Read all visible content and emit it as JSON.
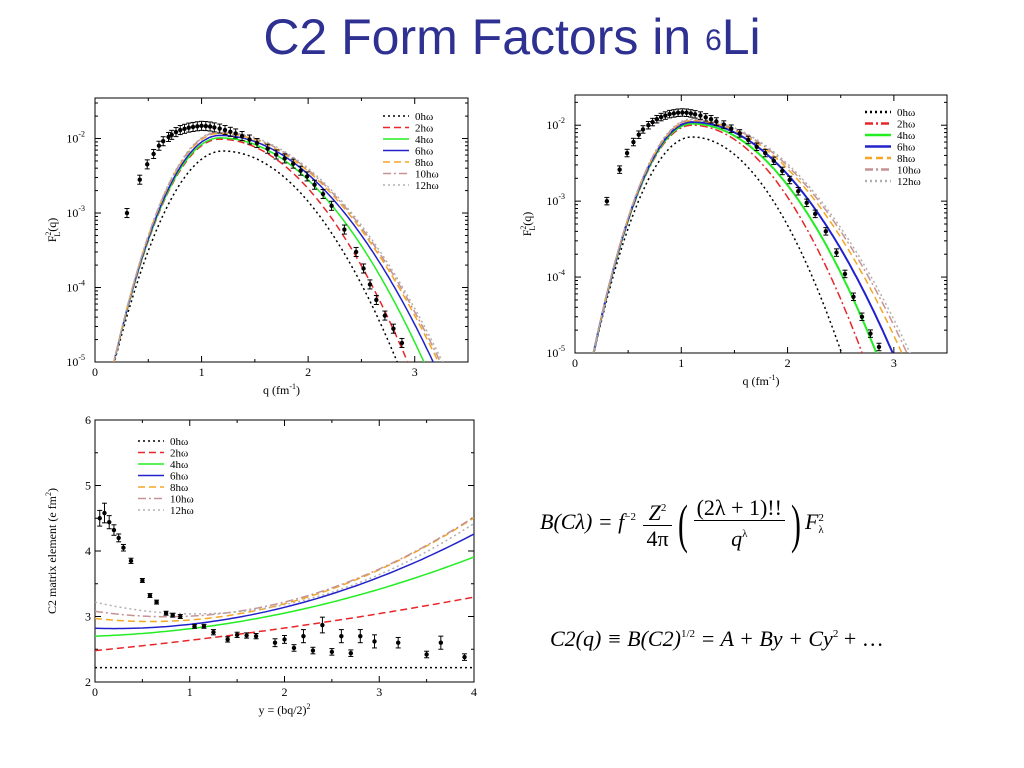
{
  "title": {
    "main": "C2 Form Factors in ",
    "sup": "6",
    "tail": "Li"
  },
  "colors": {
    "title": "#2e3192",
    "0hw": "#000000",
    "2hw": "#e8262a",
    "4hw": "#22ee22",
    "6hw": "#2222cc",
    "8hw": "#f5a623",
    "10hw": "#c49494",
    "12hw": "#b0b0b0"
  },
  "chart_data": [
    {
      "type": "line",
      "id": "plot1",
      "xlabel": "q (fm",
      "xlabel_sup": "-1",
      "xlabel_tail": ")",
      "ylabel": "F",
      "ylabel_sup": "2",
      "ylabel_sub": "L",
      "ylabel_tail": "(q)",
      "xlim": [
        0,
        3.5
      ],
      "ylim": [
        1e-05,
        0.035
      ],
      "yscale": "log",
      "xticks": [
        "0",
        "1",
        "2",
        "3"
      ],
      "yticks": [
        "10",
        "10",
        "10",
        "10"
      ],
      "ytick_exps": [
        "-2",
        "-3",
        "-4",
        "-5"
      ],
      "ytick_values": [
        0.01,
        0.001,
        0.0001,
        1e-05
      ],
      "legend_position": "top-right",
      "series": [
        {
          "name": "0hω",
          "style": "dotted",
          "color_key": "0hw",
          "peak": 0.0068,
          "qmax": 1.2,
          "qlo": 0.13,
          "qhi": 2.92
        },
        {
          "name": "2hω",
          "style": "dashed",
          "color_key": "2hw",
          "peak": 0.0098,
          "qmax": 1.17,
          "qlo": 0.13,
          "qhi": 3.02
        },
        {
          "name": "4hω",
          "style": "solid",
          "color_key": "4hw",
          "peak": 0.0102,
          "qmax": 1.17,
          "qlo": 0.13,
          "qhi": 3.18
        },
        {
          "name": "6hω",
          "style": "solid",
          "color_key": "6hw",
          "peak": 0.011,
          "qmax": 1.17,
          "qlo": 0.13,
          "qhi": 3.27
        },
        {
          "name": "8hω",
          "style": "dashed",
          "color_key": "8hw",
          "peak": 0.0117,
          "qmax": 1.16,
          "qlo": 0.13,
          "qhi": 3.32
        },
        {
          "name": "10hω",
          "style": "dashdot",
          "color_key": "10hw",
          "peak": 0.0121,
          "qmax": 1.16,
          "qlo": 0.13,
          "qhi": 3.34
        },
        {
          "name": "12hω",
          "style": "dotted",
          "color_key": "12hw",
          "peak": 0.0124,
          "qmax": 1.16,
          "qlo": 0.13,
          "qhi": 3.36
        }
      ],
      "data_points": {
        "name": "data",
        "x": [
          0.3,
          0.42,
          0.49,
          0.55,
          0.6,
          0.64,
          0.69,
          0.72,
          0.76,
          0.8,
          0.84,
          0.88,
          0.92,
          0.96,
          1.0,
          1.04,
          1.08,
          1.12,
          1.17,
          1.22,
          1.27,
          1.32,
          1.38,
          1.45,
          1.52,
          1.62,
          1.7,
          1.78,
          1.86,
          1.93,
          1.99,
          2.06,
          2.14,
          2.22,
          2.34,
          2.45,
          2.52,
          2.58,
          2.64,
          2.72,
          2.8,
          2.88
        ],
        "y": [
          0.001,
          0.0028,
          0.0045,
          0.0062,
          0.008,
          0.0092,
          0.0105,
          0.0112,
          0.0122,
          0.013,
          0.0135,
          0.014,
          0.0143,
          0.0146,
          0.0148,
          0.0147,
          0.0145,
          0.0141,
          0.0136,
          0.013,
          0.0123,
          0.0117,
          0.0108,
          0.0097,
          0.0087,
          0.0073,
          0.0061,
          0.0054,
          0.0046,
          0.0037,
          0.0031,
          0.0024,
          0.0018,
          0.00125,
          0.0006,
          0.0003,
          0.00018,
          0.00011,
          6.8e-05,
          4.2e-05,
          2.8e-05,
          1.8e-05
        ],
        "err_rel": 0.15
      }
    },
    {
      "type": "line",
      "id": "plot2",
      "xlabel": "q (fm",
      "xlabel_sup": "-1",
      "xlabel_tail": ")",
      "ylabel": "F",
      "ylabel_sup": "2",
      "ylabel_sub": "L",
      "ylabel_tail": "(q)",
      "xlim": [
        0,
        3.5
      ],
      "ylim": [
        1e-05,
        0.025
      ],
      "yscale": "log",
      "xticks": [
        "0",
        "1",
        "2",
        "3"
      ],
      "yticks": [
        "10",
        "10",
        "10",
        "10"
      ],
      "ytick_exps": [
        "-2",
        "-3",
        "-4",
        "-5"
      ],
      "ytick_values": [
        0.01,
        0.001,
        0.0001,
        1e-05
      ],
      "legend_position": "top-right",
      "series": [
        {
          "name": "0hω",
          "style": "dotted",
          "color_key": "0hw",
          "peak": 0.007,
          "qmax": 1.1,
          "qlo": 0.13,
          "qhi": 2.58
        },
        {
          "name": "2hω",
          "style": "dashdot",
          "color_key": "2hw",
          "peak": 0.01,
          "qmax": 1.1,
          "qlo": 0.13,
          "qhi": 2.78
        },
        {
          "name": "4hω",
          "style": "solid",
          "color_key": "4hw",
          "peak": 0.0105,
          "qmax": 1.1,
          "qlo": 0.13,
          "qhi": 2.92
        },
        {
          "name": "6hω",
          "style": "solid",
          "color_key": "6hw",
          "peak": 0.011,
          "qmax": 1.1,
          "qlo": 0.13,
          "qhi": 3.08
        },
        {
          "name": "8hω",
          "style": "dashed",
          "color_key": "8hw",
          "peak": 0.0115,
          "qmax": 1.1,
          "qlo": 0.13,
          "qhi": 3.17
        },
        {
          "name": "10hω",
          "style": "dashdot",
          "color_key": "10hw",
          "peak": 0.0118,
          "qmax": 1.1,
          "qlo": 0.13,
          "qhi": 3.22
        },
        {
          "name": "12hω",
          "style": "dotted",
          "color_key": "12hw",
          "peak": 0.0121,
          "qmax": 1.1,
          "qlo": 0.13,
          "qhi": 3.25
        }
      ],
      "data_points": {
        "name": "data",
        "x": [
          0.3,
          0.42,
          0.49,
          0.55,
          0.6,
          0.64,
          0.69,
          0.73,
          0.77,
          0.81,
          0.85,
          0.89,
          0.93,
          0.97,
          1.01,
          1.05,
          1.09,
          1.13,
          1.18,
          1.23,
          1.28,
          1.33,
          1.4,
          1.47,
          1.55,
          1.63,
          1.71,
          1.79,
          1.87,
          1.95,
          2.02,
          2.1,
          2.18,
          2.26,
          2.36,
          2.46,
          2.54,
          2.62,
          2.7,
          2.78,
          2.86
        ],
        "y": [
          0.001,
          0.0026,
          0.0043,
          0.006,
          0.0075,
          0.0088,
          0.01,
          0.011,
          0.012,
          0.0128,
          0.0134,
          0.014,
          0.0143,
          0.0146,
          0.0147,
          0.0146,
          0.0143,
          0.0139,
          0.0134,
          0.0127,
          0.012,
          0.0112,
          0.0102,
          0.009,
          0.0078,
          0.0064,
          0.0052,
          0.0043,
          0.0034,
          0.0025,
          0.0019,
          0.00135,
          0.00095,
          0.00068,
          0.0004,
          0.00021,
          0.00011,
          5.5e-05,
          3e-05,
          1.8e-05,
          1.2e-05
        ],
        "err_rel": 0.12
      }
    },
    {
      "type": "line",
      "id": "plot3",
      "xlabel": "y = (bq/2)",
      "xlabel_sup": "2",
      "xlabel_tail": "",
      "ylabel": "C2 matrix element (e fm",
      "ylabel_sup": "2",
      "ylabel_sub": "",
      "ylabel_tail": ")",
      "xlim": [
        0,
        4
      ],
      "ylim": [
        2,
        6
      ],
      "yscale": "linear",
      "xticks": [
        "0",
        "1",
        "2",
        "3",
        "4"
      ],
      "yticks": [
        "6",
        "5",
        "4",
        "3",
        "2"
      ],
      "ytick_values": [
        6,
        5,
        4,
        3,
        2
      ],
      "legend_position": "top-left",
      "series": [
        {
          "name": "0hω",
          "style": "dotted",
          "color_key": "0hw",
          "poly": [
            2.22,
            0.0,
            0.0
          ]
        },
        {
          "name": "2hω",
          "style": "dashed",
          "color_key": "2hw",
          "poly": [
            2.48,
            0.14,
            0.016
          ]
        },
        {
          "name": "4hω",
          "style": "solid",
          "color_key": "4hw",
          "poly": [
            2.7,
            0.05,
            0.063
          ]
        },
        {
          "name": "6hω",
          "style": "solid",
          "color_key": "6hw",
          "poly": [
            2.82,
            -0.04,
            0.1
          ]
        },
        {
          "name": "8hω",
          "style": "dashed",
          "color_key": "8hw",
          "poly": [
            2.97,
            -0.16,
            0.136
          ]
        },
        {
          "name": "10hω",
          "style": "dashdot",
          "color_key": "10hw",
          "poly": [
            3.08,
            -0.22,
            0.145
          ]
        },
        {
          "name": "12hω",
          "style": "dotted",
          "color_key": "12hw",
          "poly": [
            3.22,
            -0.34,
            0.16
          ]
        }
      ],
      "data_points": {
        "name": "data",
        "x": [
          0.05,
          0.1,
          0.15,
          0.2,
          0.25,
          0.3,
          0.38,
          0.5,
          0.58,
          0.65,
          0.75,
          0.82,
          0.9,
          1.05,
          1.15,
          1.25,
          1.4,
          1.5,
          1.6,
          1.7,
          1.9,
          2.0,
          2.1,
          2.2,
          2.3,
          2.4,
          2.5,
          2.6,
          2.7,
          2.8,
          2.95,
          3.2,
          3.5,
          3.65,
          3.9
        ],
        "y": [
          4.5,
          4.58,
          4.44,
          4.32,
          4.2,
          4.05,
          3.85,
          3.55,
          3.32,
          3.22,
          3.05,
          3.02,
          3.0,
          2.85,
          2.85,
          2.76,
          2.65,
          2.72,
          2.71,
          2.7,
          2.6,
          2.65,
          2.52,
          2.7,
          2.48,
          2.87,
          2.46,
          2.7,
          2.44,
          2.7,
          2.62,
          2.6,
          2.42,
          2.6,
          2.38
        ],
        "err": [
          0.12,
          0.15,
          0.1,
          0.08,
          0.06,
          0.05,
          0.04,
          0.03,
          0.03,
          0.03,
          0.03,
          0.03,
          0.03,
          0.03,
          0.03,
          0.04,
          0.04,
          0.04,
          0.04,
          0.04,
          0.06,
          0.06,
          0.05,
          0.1,
          0.05,
          0.12,
          0.05,
          0.1,
          0.05,
          0.1,
          0.1,
          0.08,
          0.05,
          0.1,
          0.05
        ]
      }
    }
  ],
  "formula1": {
    "B": "B(Cλ) = f",
    "f_exp": "−2",
    "frac1_num": "Z",
    "frac1_num_sup": "2",
    "frac1_den": "4π",
    "frac2_num": "(2λ + 1)!!",
    "frac2_den": "q",
    "frac2_den_sup": "λ",
    "F": "F",
    "F_sup": "2",
    "F_sub": "λ"
  },
  "formula2": {
    "lhs": "C2(q) ≡ B(C2)",
    "lhs_sup": "1/2",
    "rhs": " = A + By + Cy",
    "rhs_sup": "2",
    "rhs_tail": " + …"
  }
}
